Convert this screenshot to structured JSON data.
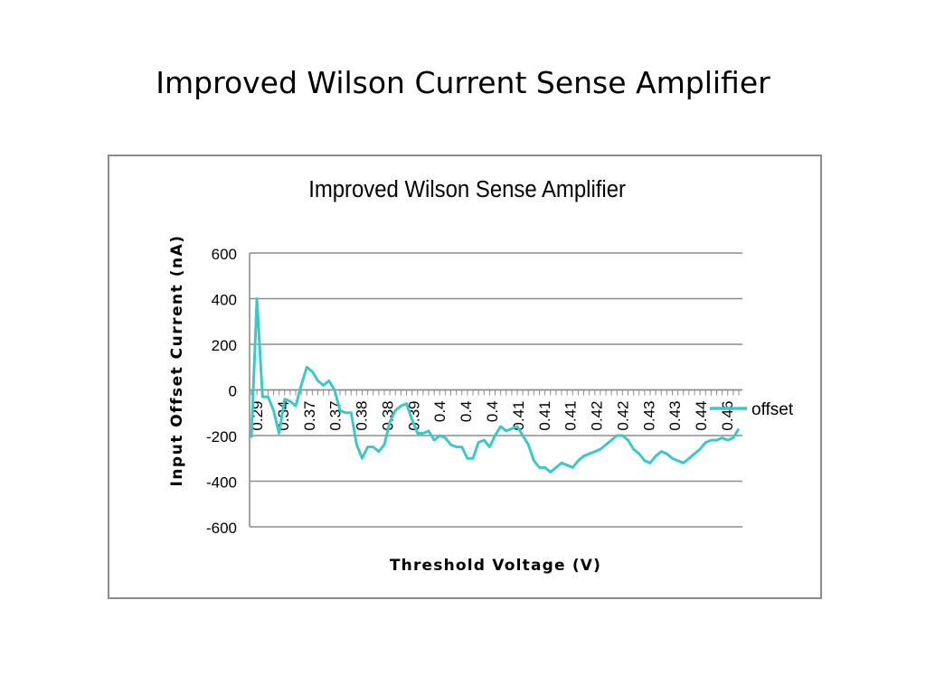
{
  "slide": {
    "title": "Improved Wilson Current Sense Amplifier"
  },
  "colors": {
    "series": "#3cc8c8",
    "grid": "#8c8c8c",
    "frame": "#8c8c8c"
  },
  "chart_data": {
    "type": "line",
    "title": "Improved Wilson Sense Amplifier",
    "xlabel": "Threshold Voltage (V)",
    "ylabel": "Input Offset Current (nA)",
    "ylim": [
      -600,
      600
    ],
    "yticks": [
      600,
      400,
      200,
      0,
      -200,
      -400,
      -600
    ],
    "grid": true,
    "legend_position": "right",
    "x_tick_labels": [
      "0.29",
      "0.34",
      "0.37",
      "0.37",
      "0.38",
      "0.38",
      "0.39",
      "0.4",
      "0.4",
      "0.4",
      "0.41",
      "0.41",
      "0.41",
      "0.42",
      "0.42",
      "0.43",
      "0.43",
      "0.44",
      "0.46"
    ],
    "series": [
      {
        "name": "offset",
        "values": [
          -210,
          400,
          -30,
          -30,
          -90,
          -190,
          -40,
          -50,
          -70,
          20,
          100,
          80,
          40,
          20,
          40,
          0,
          -90,
          -100,
          -100,
          -240,
          -300,
          -250,
          -250,
          -270,
          -240,
          -140,
          -90,
          -70,
          -60,
          -130,
          -190,
          -190,
          -180,
          -220,
          -200,
          -210,
          -240,
          -250,
          -250,
          -300,
          -300,
          -230,
          -220,
          -250,
          -200,
          -160,
          -180,
          -170,
          -160,
          -200,
          -240,
          -310,
          -340,
          -340,
          -360,
          -340,
          -320,
          -330,
          -340,
          -310,
          -290,
          -280,
          -270,
          -260,
          -240,
          -220,
          -200,
          -200,
          -220,
          -260,
          -280,
          -310,
          -320,
          -290,
          -270,
          -280,
          -300,
          -310,
          -320,
          -300,
          -280,
          -260,
          -230,
          -220,
          -220,
          -210,
          -220,
          -210,
          -170
        ]
      }
    ]
  }
}
